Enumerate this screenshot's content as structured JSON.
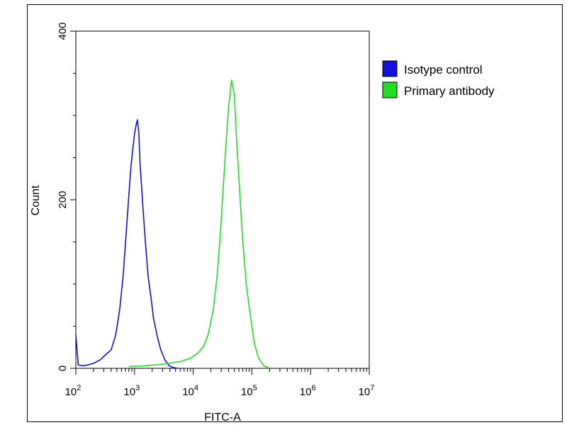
{
  "chart_data": {
    "type": "line",
    "title": "",
    "xlabel": "FITC-A",
    "ylabel": "Count",
    "x_scale": "log",
    "xlim": [
      100,
      10000000
    ],
    "ylim": [
      0,
      400
    ],
    "grid": false,
    "legend_placement": "right",
    "x_tick_labels": [
      {
        "value": 100,
        "base": "10",
        "exp": "2"
      },
      {
        "value": 1000,
        "base": "10",
        "exp": "3"
      },
      {
        "value": 10000,
        "base": "10",
        "exp": "4"
      },
      {
        "value": 100000,
        "base": "10",
        "exp": "5"
      },
      {
        "value": 1000000,
        "base": "10",
        "exp": "6"
      },
      {
        "value": 10000000,
        "base": "10",
        "exp": "7"
      }
    ],
    "y_tick_labels": [
      {
        "value": 0,
        "label": "0"
      },
      {
        "value": 200,
        "label": "200"
      },
      {
        "value": 400,
        "label": "400"
      }
    ],
    "series": [
      {
        "name": "Isotype control",
        "color": "#1010dd",
        "x": [
          100,
          110,
          130,
          160,
          200,
          260,
          320,
          400,
          480,
          560,
          640,
          720,
          800,
          870,
          940,
          1000,
          1060,
          1120,
          1180,
          1250,
          1320,
          1400,
          1550,
          1700,
          1900,
          2100,
          2400,
          2800,
          3300,
          3900,
          4500,
          5500
        ],
        "y": [
          40,
          4,
          3,
          4,
          6,
          10,
          16,
          22,
          40,
          70,
          110,
          160,
          205,
          240,
          262,
          278,
          288,
          295,
          280,
          240,
          215,
          188,
          145,
          110,
          85,
          60,
          40,
          22,
          10,
          3,
          1,
          0
        ]
      },
      {
        "name": "Primary antibody",
        "color": "#22dd22",
        "x": [
          800,
          1500,
          3000,
          6000,
          9000,
          12000,
          15000,
          18000,
          22000,
          26000,
          30000,
          35000,
          40000,
          45000,
          50000,
          55000,
          62000,
          70000,
          80000,
          95000,
          110000,
          130000,
          160000,
          200000
        ],
        "y": [
          2,
          3,
          5,
          8,
          12,
          18,
          26,
          40,
          70,
          115,
          175,
          250,
          310,
          342,
          325,
          270,
          210,
          150,
          100,
          60,
          30,
          12,
          3,
          0
        ]
      }
    ]
  }
}
